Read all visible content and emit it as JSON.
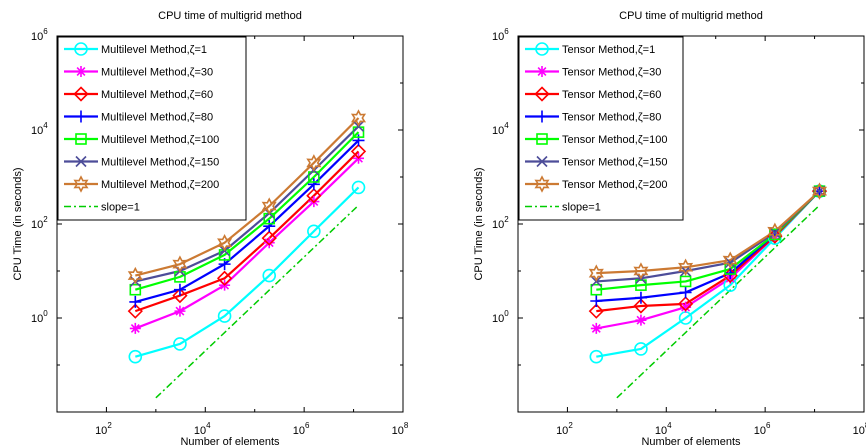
{
  "chart_data": [
    {
      "type": "line",
      "title": "CPU time of multigrid method",
      "xlabel": "Number of elements",
      "ylabel": "CPU Time (in seconds)",
      "xscale": "log",
      "yscale": "log",
      "xlim": [
        10,
        100000000
      ],
      "ylim": [
        0.01,
        1000000
      ],
      "xticks": [
        {
          "value": 100,
          "base": "10",
          "exp": "2"
        },
        {
          "value": 10000,
          "base": "10",
          "exp": "4"
        },
        {
          "value": 1000000,
          "base": "10",
          "exp": "6"
        },
        {
          "value": 100000000,
          "base": "10",
          "exp": "8"
        }
      ],
      "yticks": [
        {
          "value": 1,
          "base": "10",
          "exp": "0"
        },
        {
          "value": 100,
          "base": "10",
          "exp": "2"
        },
        {
          "value": 10000,
          "base": "10",
          "exp": "4"
        },
        {
          "value": 1000000,
          "base": "10",
          "exp": "6"
        }
      ],
      "legend_position": "top-left",
      "x": [
        384,
        3072,
        24576,
        196608,
        1572864,
        12582912
      ],
      "series": [
        {
          "name": "Multilevel Method,ζ=1",
          "color": "#00ffff",
          "marker": "circle",
          "values": [
            0.15,
            0.28,
            1.1,
            8,
            70,
            600
          ]
        },
        {
          "name": "Multilevel Method,ζ=30",
          "color": "#ff00ff",
          "marker": "star",
          "values": [
            0.6,
            1.4,
            5,
            40,
            300,
            2500
          ]
        },
        {
          "name": "Multilevel Method,ζ=60",
          "color": "#ff0000",
          "marker": "diamond",
          "values": [
            1.4,
            3,
            7,
            50,
            400,
            3500
          ]
        },
        {
          "name": "Multilevel Method,ζ=80",
          "color": "#0000ff",
          "marker": "plus",
          "values": [
            2.2,
            4,
            14,
            90,
            700,
            6000
          ]
        },
        {
          "name": "Multilevel Method,ζ=100",
          "color": "#00ff00",
          "marker": "square",
          "values": [
            4,
            7.5,
            22,
            130,
            1000,
            9000
          ]
        },
        {
          "name": "Multilevel Method,ζ=150",
          "color": "#4d4d99",
          "marker": "x",
          "values": [
            6,
            10,
            27,
            170,
            1400,
            12000
          ]
        },
        {
          "name": "Multilevel Method,ζ=200",
          "color": "#cc7a33",
          "marker": "hexagram",
          "values": [
            8,
            14,
            40,
            240,
            2000,
            18000
          ]
        }
      ],
      "reference": {
        "name": "slope=1",
        "color": "#00cc00",
        "style": "dash-dot",
        "x": [
          1000,
          12582912
        ],
        "values": [
          0.02,
          250
        ]
      }
    },
    {
      "type": "line",
      "title": "CPU time of multigrid method",
      "xlabel": "Number of elements",
      "ylabel": "CPU Time (in seconds)",
      "xscale": "log",
      "yscale": "log",
      "xlim": [
        10,
        100000000
      ],
      "ylim": [
        0.01,
        1000000
      ],
      "xticks": [
        {
          "value": 100,
          "base": "10",
          "exp": "2"
        },
        {
          "value": 10000,
          "base": "10",
          "exp": "4"
        },
        {
          "value": 1000000,
          "base": "10",
          "exp": "6"
        },
        {
          "value": 100000000,
          "base": "10",
          "exp": "8"
        }
      ],
      "yticks": [
        {
          "value": 1,
          "base": "10",
          "exp": "0"
        },
        {
          "value": 100,
          "base": "10",
          "exp": "2"
        },
        {
          "value": 10000,
          "base": "10",
          "exp": "4"
        },
        {
          "value": 1000000,
          "base": "10",
          "exp": "6"
        }
      ],
      "legend_position": "top-left",
      "x": [
        384,
        3072,
        24576,
        196608,
        1572864,
        12582912
      ],
      "series": [
        {
          "name": "Tensor Method,ζ=1",
          "color": "#00ffff",
          "marker": "circle",
          "values": [
            0.15,
            0.22,
            1.0,
            5,
            50,
            500
          ]
        },
        {
          "name": "Tensor Method,ζ=30",
          "color": "#ff00ff",
          "marker": "star",
          "values": [
            0.6,
            0.9,
            1.7,
            7,
            55,
            500
          ]
        },
        {
          "name": "Tensor Method,ζ=60",
          "color": "#ff0000",
          "marker": "diamond",
          "values": [
            1.4,
            1.8,
            2.0,
            8,
            55,
            500
          ]
        },
        {
          "name": "Tensor Method,ζ=80",
          "color": "#0000ff",
          "marker": "plus",
          "values": [
            2.3,
            2.7,
            3.5,
            9,
            60,
            500
          ]
        },
        {
          "name": "Tensor Method,ζ=100",
          "color": "#00ff00",
          "marker": "square",
          "values": [
            4,
            5,
            6,
            11,
            60,
            500
          ]
        },
        {
          "name": "Tensor Method,ζ=150",
          "color": "#4d4d99",
          "marker": "x",
          "values": [
            6,
            7,
            10,
            15,
            65,
            500
          ]
        },
        {
          "name": "Tensor Method,ζ=200",
          "color": "#cc7a33",
          "marker": "hexagram",
          "values": [
            9,
            10,
            12,
            17,
            70,
            500
          ]
        }
      ],
      "reference": {
        "name": "slope=1",
        "color": "#00cc00",
        "style": "dash-dot",
        "x": [
          1000,
          12582912
        ],
        "values": [
          0.02,
          250
        ]
      }
    }
  ]
}
